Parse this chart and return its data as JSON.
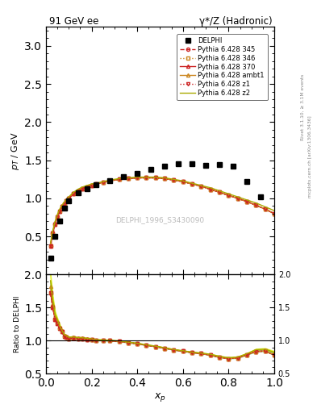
{
  "title_left": "91 GeV ee",
  "title_right": "γ*/Z (Hadronic)",
  "ylabel_main": "p_{T} / GeV",
  "ylabel_ratio": "Ratio to DELPHI",
  "xlabel": "x_p",
  "watermark": "DELPHI_1996_S3430090",
  "right_label_top": "Rivet 3.1.10, ≥ 3.1M events",
  "right_label_bot": "mcplots.cern.ch [arXiv:1306.3436]",
  "ylim_main": [
    0.0,
    3.25
  ],
  "ylim_ratio": [
    0.5,
    2.0
  ],
  "yticks_main": [
    0.5,
    1.0,
    1.5,
    2.0,
    2.5,
    3.0
  ],
  "yticks_ratio": [
    0.5,
    1.0,
    1.5,
    2.0
  ],
  "delphi_x": [
    0.02,
    0.04,
    0.06,
    0.08,
    0.1,
    0.14,
    0.18,
    0.22,
    0.28,
    0.34,
    0.4,
    0.46,
    0.52,
    0.58,
    0.64,
    0.7,
    0.76,
    0.82,
    0.88,
    0.94
  ],
  "delphi_y": [
    0.22,
    0.5,
    0.7,
    0.87,
    0.97,
    1.07,
    1.13,
    1.18,
    1.23,
    1.28,
    1.33,
    1.38,
    1.42,
    1.45,
    1.45,
    1.43,
    1.44,
    1.42,
    1.22,
    1.02
  ],
  "xp": [
    0.02,
    0.03,
    0.04,
    0.05,
    0.06,
    0.07,
    0.08,
    0.09,
    0.1,
    0.12,
    0.14,
    0.16,
    0.18,
    0.2,
    0.22,
    0.25,
    0.28,
    0.32,
    0.36,
    0.4,
    0.44,
    0.48,
    0.52,
    0.56,
    0.6,
    0.64,
    0.68,
    0.72,
    0.76,
    0.8,
    0.84,
    0.88,
    0.92,
    0.96,
    1.0
  ],
  "py_data": {
    "345": [
      0.38,
      0.54,
      0.66,
      0.76,
      0.83,
      0.89,
      0.93,
      0.97,
      1.0,
      1.06,
      1.1,
      1.13,
      1.15,
      1.17,
      1.19,
      1.21,
      1.23,
      1.25,
      1.26,
      1.27,
      1.27,
      1.27,
      1.26,
      1.24,
      1.22,
      1.19,
      1.16,
      1.12,
      1.08,
      1.04,
      1.0,
      0.96,
      0.91,
      0.86,
      0.8
    ],
    "346": [
      0.38,
      0.54,
      0.66,
      0.76,
      0.83,
      0.89,
      0.93,
      0.97,
      1.0,
      1.06,
      1.1,
      1.13,
      1.15,
      1.17,
      1.19,
      1.21,
      1.23,
      1.25,
      1.26,
      1.27,
      1.27,
      1.27,
      1.26,
      1.24,
      1.22,
      1.19,
      1.16,
      1.12,
      1.08,
      1.04,
      1.0,
      0.96,
      0.91,
      0.86,
      0.8
    ],
    "370": [
      0.38,
      0.54,
      0.66,
      0.76,
      0.83,
      0.89,
      0.93,
      0.97,
      1.0,
      1.06,
      1.1,
      1.13,
      1.15,
      1.17,
      1.19,
      1.21,
      1.23,
      1.25,
      1.26,
      1.27,
      1.27,
      1.27,
      1.26,
      1.24,
      1.22,
      1.19,
      1.16,
      1.12,
      1.08,
      1.04,
      1.0,
      0.96,
      0.91,
      0.86,
      0.8
    ],
    "ambt1": [
      0.4,
      0.56,
      0.68,
      0.77,
      0.84,
      0.9,
      0.94,
      0.98,
      1.01,
      1.07,
      1.11,
      1.14,
      1.16,
      1.18,
      1.19,
      1.21,
      1.23,
      1.25,
      1.26,
      1.27,
      1.27,
      1.27,
      1.26,
      1.24,
      1.22,
      1.19,
      1.16,
      1.12,
      1.08,
      1.04,
      1.0,
      0.96,
      0.91,
      0.86,
      0.8
    ],
    "z1": [
      0.38,
      0.54,
      0.66,
      0.76,
      0.83,
      0.89,
      0.93,
      0.97,
      1.0,
      1.06,
      1.1,
      1.13,
      1.15,
      1.17,
      1.19,
      1.21,
      1.23,
      1.25,
      1.26,
      1.27,
      1.27,
      1.27,
      1.26,
      1.24,
      1.22,
      1.19,
      1.16,
      1.12,
      1.08,
      1.04,
      1.0,
      0.96,
      0.91,
      0.86,
      0.8
    ],
    "z2": [
      0.42,
      0.58,
      0.7,
      0.79,
      0.86,
      0.91,
      0.95,
      0.99,
      1.02,
      1.08,
      1.12,
      1.15,
      1.17,
      1.19,
      1.2,
      1.22,
      1.24,
      1.26,
      1.27,
      1.28,
      1.28,
      1.28,
      1.27,
      1.25,
      1.23,
      1.2,
      1.17,
      1.14,
      1.1,
      1.06,
      1.02,
      0.98,
      0.94,
      0.89,
      0.84
    ]
  },
  "lines": [
    {
      "key": "345",
      "color": "#cc2222",
      "ls": "--",
      "marker": "o",
      "mfc": "none",
      "label": "Pythia 6.428 345"
    },
    {
      "key": "346",
      "color": "#cc8822",
      "ls": ":",
      "marker": "s",
      "mfc": "none",
      "label": "Pythia 6.428 346"
    },
    {
      "key": "370",
      "color": "#cc2222",
      "ls": "-",
      "marker": "^",
      "mfc": "none",
      "label": "Pythia 6.428 370"
    },
    {
      "key": "ambt1",
      "color": "#cc8822",
      "ls": "-",
      "marker": "^",
      "mfc": "none",
      "label": "Pythia 6.428 ambt1"
    },
    {
      "key": "z1",
      "color": "#cc2222",
      "ls": ":",
      "marker": "v",
      "mfc": "none",
      "label": "Pythia 6.428 z1"
    },
    {
      "key": "z2",
      "color": "#aaaa00",
      "ls": "-",
      "marker": null,
      "mfc": "none",
      "label": "Pythia 6.428 z2"
    }
  ]
}
